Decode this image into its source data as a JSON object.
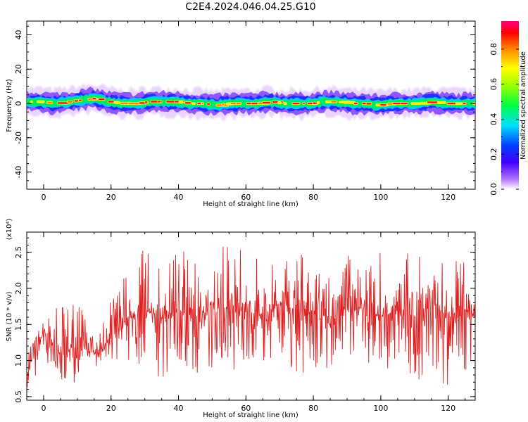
{
  "figure": {
    "title": "C2E4.2024.046.04.25.G10",
    "colors": {
      "line": "#e02020",
      "axis": "#000000",
      "background": "#ffffff"
    }
  },
  "chart_data": [
    {
      "type": "heatmap",
      "xlabel": "Height of straight line (km)",
      "ylabel": "Frequency (Hz)",
      "xlim": [
        -5,
        128
      ],
      "ylim": [
        -50,
        48
      ],
      "xticks": [
        0,
        20,
        40,
        60,
        80,
        100,
        120
      ],
      "yticks": [
        -40,
        -20,
        0,
        20,
        40
      ],
      "grid": false,
      "band_center_hz": [
        1,
        1,
        0,
        1,
        2,
        3,
        1,
        0,
        0,
        1,
        1,
        1,
        0,
        0,
        -1,
        0,
        0,
        0,
        1,
        0,
        0,
        0,
        1,
        1,
        0,
        0,
        -1,
        0,
        0,
        0,
        1,
        0,
        0
      ],
      "band_center_x_km": [
        -5,
        -1,
        3,
        7,
        11,
        15,
        19,
        23,
        27,
        31,
        35,
        39,
        43,
        47,
        51,
        55,
        59,
        63,
        67,
        71,
        75,
        79,
        83,
        87,
        91,
        95,
        99,
        103,
        107,
        111,
        115,
        119,
        128
      ],
      "band_halfwidth_hz": 4,
      "colorbar": {
        "label": "Normalized spectral amplitude",
        "range": [
          0,
          0.96
        ],
        "ticks": [
          0.0,
          0.2,
          0.4,
          0.6,
          0.8
        ],
        "colormap": "rainbow (white-violet-blue-cyan-green-yellow-red-magenta)"
      }
    },
    {
      "type": "line",
      "xlabel": "Height of straight line (km)",
      "ylabel": "SNR (10 * v/v)",
      "y_multiplier": "(x10⁴)",
      "xlim": [
        -5,
        128
      ],
      "ylim": [
        0.45,
        2.78
      ],
      "xticks": [
        0,
        20,
        40,
        60,
        80,
        100,
        120
      ],
      "yticks": [
        0.5,
        1.0,
        1.5,
        2.0,
        2.5
      ],
      "grid": false,
      "series": [
        {
          "x": [
            -5,
            0,
            5,
            10,
            15,
            20,
            25,
            30,
            35,
            40,
            45,
            50,
            55,
            60,
            65,
            70,
            75,
            80,
            85,
            90,
            95,
            100,
            105,
            110,
            115,
            120,
            125,
            128
          ],
          "values": [
            0.8,
            1.4,
            1.1,
            1.2,
            1.1,
            1.3,
            1.6,
            1.7,
            1.6,
            1.7,
            1.6,
            1.8,
            1.7,
            1.7,
            1.6,
            1.8,
            1.6,
            1.7,
            1.5,
            1.8,
            1.7,
            1.6,
            1.7,
            1.6,
            1.8,
            1.6,
            1.7,
            1.6
          ],
          "min_values": [
            0.6,
            0.95,
            0.65,
            0.7,
            0.9,
            0.95,
            1.0,
            0.9,
            0.7,
            0.9,
            0.8,
            0.85,
            0.6,
            0.9,
            0.8,
            0.9,
            0.75,
            0.9,
            0.8,
            1.0,
            0.8,
            0.8,
            0.9,
            0.7,
            0.85,
            0.55,
            0.8,
            1.0
          ],
          "max_values": [
            1.1,
            1.55,
            1.9,
            1.95,
            1.35,
            1.9,
            2.3,
            2.6,
            2.3,
            2.6,
            2.4,
            2.7,
            2.75,
            2.5,
            2.4,
            2.3,
            2.6,
            2.4,
            2.3,
            2.5,
            2.3,
            2.5,
            2.3,
            2.7,
            2.3,
            2.55,
            2.4,
            2.0
          ],
          "color": "#e02020"
        }
      ]
    }
  ]
}
